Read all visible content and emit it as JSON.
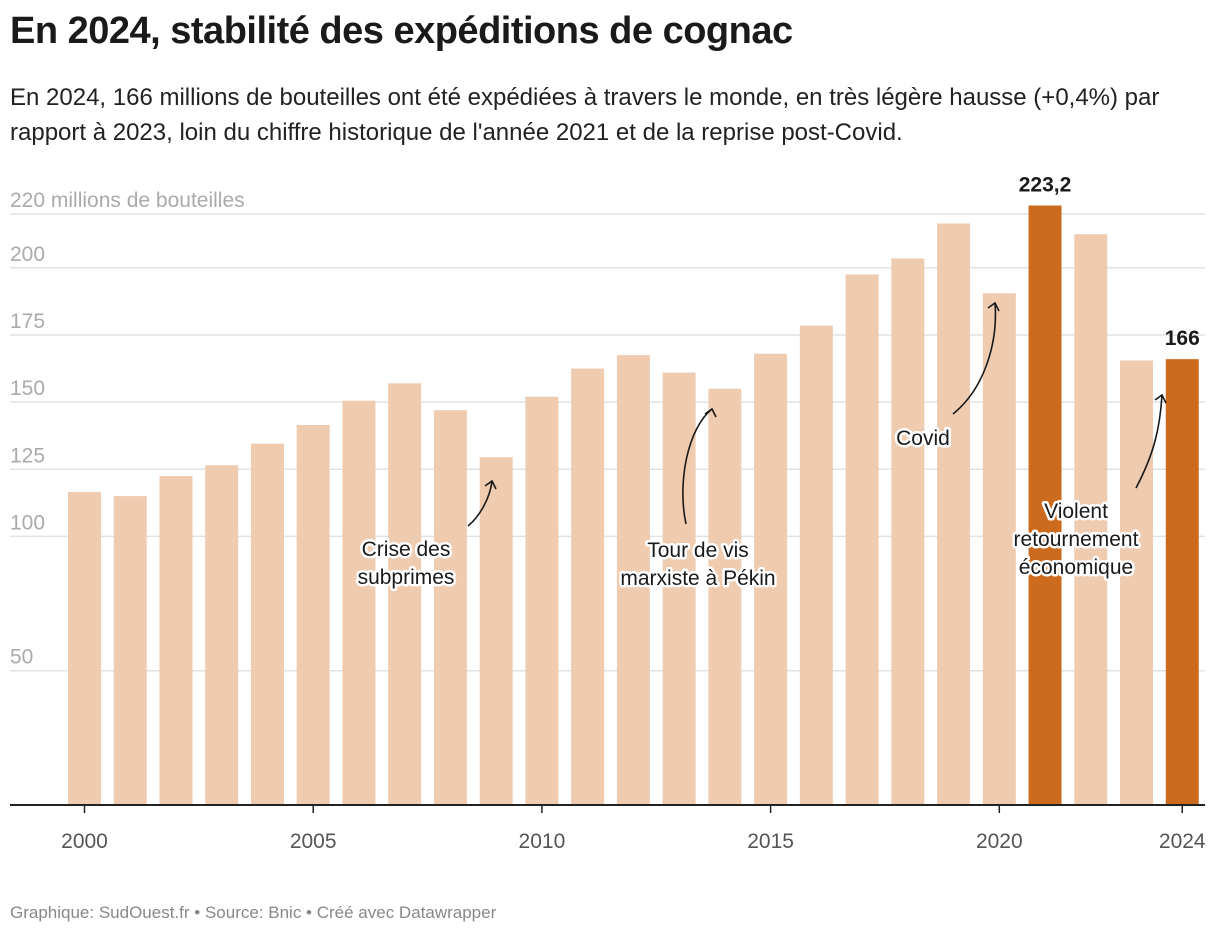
{
  "title": "En 2024, stabilité des expéditions de cognac",
  "subtitle": "En 2024, 166 millions de bouteilles ont été expédiées à travers le monde, en très légère hausse (+0,4%) par rapport à 2023, loin du chiffre historique de l'année 2021 et de la reprise post-Covid.",
  "footer": "Graphique: SudOuest.fr • Source: Bnic • Créé avec Datawrapper",
  "colors": {
    "bar": "#efcbb0",
    "highlight": "#cc6b1e",
    "grid": "#e2e2e2",
    "axis": "#222222"
  },
  "chart_data": {
    "type": "bar",
    "title": "En 2024, stabilité des expéditions de cognac",
    "ylabel": "millions de bouteilles",
    "ylim": [
      0,
      220
    ],
    "yticks": [
      {
        "value": 50,
        "label": "50"
      },
      {
        "value": 100,
        "label": "100"
      },
      {
        "value": 125,
        "label": "125"
      },
      {
        "value": 150,
        "label": "150"
      },
      {
        "value": 175,
        "label": "175"
      },
      {
        "value": 200,
        "label": "200"
      },
      {
        "value": 220,
        "label": "220 millions de bouteilles"
      }
    ],
    "xticks": [
      {
        "value": 2000,
        "label": "2000"
      },
      {
        "value": 2005,
        "label": "2005"
      },
      {
        "value": 2010,
        "label": "2010"
      },
      {
        "value": 2015,
        "label": "2015"
      },
      {
        "value": 2020,
        "label": "2020"
      },
      {
        "value": 2024,
        "label": "2024"
      }
    ],
    "grid": true,
    "legend": "none",
    "x": [
      2000,
      2001,
      2002,
      2003,
      2004,
      2005,
      2006,
      2007,
      2008,
      2009,
      2010,
      2011,
      2012,
      2013,
      2014,
      2015,
      2016,
      2017,
      2018,
      2019,
      2020,
      2021,
      2022,
      2023,
      2024
    ],
    "values": [
      116.5,
      115,
      122.5,
      126.5,
      134.5,
      141.5,
      150.5,
      157,
      147,
      129.5,
      152,
      162.5,
      167.5,
      161,
      155,
      168,
      178.5,
      197.5,
      203.5,
      216.5,
      190.5,
      223.2,
      212.5,
      165.5,
      166
    ],
    "highlighted": [
      2021,
      2024
    ],
    "bar_labels": [
      {
        "x": 2021,
        "text": "223,2"
      },
      {
        "x": 2024,
        "text": "166"
      }
    ],
    "annotations": [
      {
        "name": "subprimes",
        "lines": [
          "Crise des",
          "subprimes"
        ],
        "target": 2009
      },
      {
        "name": "pekin",
        "lines": [
          "Tour de vis",
          "marxiste à Pékin"
        ],
        "target": 2014
      },
      {
        "name": "covid",
        "lines": [
          "Covid"
        ],
        "target": 2020
      },
      {
        "name": "retournement",
        "lines": [
          "Violent",
          "retournement",
          "économique"
        ],
        "target": 2024
      }
    ]
  }
}
